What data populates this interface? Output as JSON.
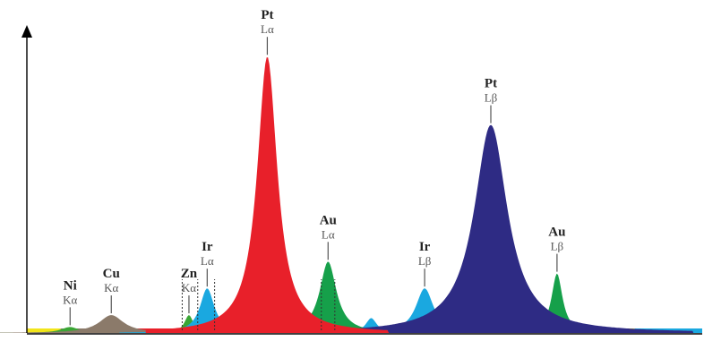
{
  "chart_data": {
    "type": "area",
    "title": "",
    "xlabel": "",
    "ylabel": "",
    "x_range": [
      0,
      100
    ],
    "y_range": [
      0,
      100
    ],
    "grid": false,
    "legend": "none",
    "peaks": [
      {
        "element": "Ni",
        "line": "Kα",
        "x": 6.4,
        "y": 2,
        "width": 1.6,
        "color": "#3aa635"
      },
      {
        "element": "Cu",
        "line": "Kα",
        "x": 12.5,
        "y": 6,
        "width": 2.2,
        "color": "#8b7a6a"
      },
      {
        "element": "Zn",
        "line": "Kα",
        "x": 24.0,
        "y": 6,
        "width": 0.8,
        "color": "#3aa635"
      },
      {
        "element": "Ir",
        "line": "Lα",
        "x": 26.7,
        "y": 15,
        "width": 1.3,
        "color": "#1aa8e0"
      },
      {
        "element": "Pt",
        "line": "Lα",
        "x": 35.6,
        "y": 93,
        "width": 1.8,
        "color": "#e8202a"
      },
      {
        "element": "Au",
        "line": "Lα",
        "x": 44.6,
        "y": 24,
        "width": 1.5,
        "color": "#16a04a"
      },
      {
        "element": "",
        "line": "",
        "x": 51.0,
        "y": 5,
        "width": 1.0,
        "color": "#1aa8e0"
      },
      {
        "element": "Ir",
        "line": "Lβ",
        "x": 58.9,
        "y": 15,
        "width": 1.6,
        "color": "#1aa8e0"
      },
      {
        "element": "Pt",
        "line": "Lβ",
        "x": 68.7,
        "y": 70,
        "width": 3.0,
        "color": "#2e2b84"
      },
      {
        "element": "Au",
        "line": "Lβ",
        "x": 78.5,
        "y": 20,
        "width": 1.0,
        "color": "#16a04a"
      }
    ],
    "baseline_bands": [
      {
        "color": "#f2e51a",
        "x": [
          0,
          5
        ]
      },
      {
        "color": "#8b7a6a",
        "x": [
          5,
          16
        ]
      },
      {
        "color": "#e8202a",
        "x": [
          16,
          50
        ]
      },
      {
        "color": "#2e2b84",
        "x": [
          50,
          82
        ]
      },
      {
        "color": "#f2e51a",
        "x": [
          82,
          90
        ]
      },
      {
        "color": "#1aa8e0",
        "x": [
          90,
          100
        ]
      }
    ],
    "colors": {
      "axis": "#000000",
      "label_text": "#222222",
      "line_text": "#555555"
    }
  }
}
